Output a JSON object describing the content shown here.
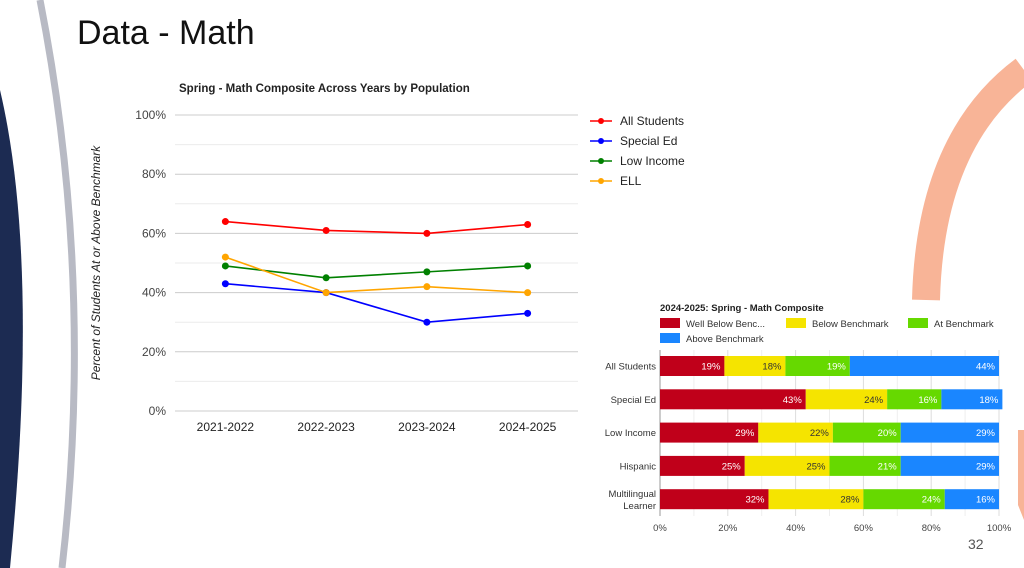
{
  "slide": {
    "title": "Data - Math",
    "page_number": "32"
  },
  "chart_data": [
    {
      "type": "line",
      "title": "Spring - Math Composite Across Years by Population",
      "ylabel": "Percent of Students At or Above Benchmark",
      "xlabel": "",
      "categories": [
        "2021-2022",
        "2022-2023",
        "2023-2024",
        "2024-2025"
      ],
      "ylim": [
        0,
        100
      ],
      "yticks": [
        "0%",
        "20%",
        "40%",
        "60%",
        "80%",
        "100%"
      ],
      "grid": true,
      "legend_position": "right",
      "series": [
        {
          "name": "All Students",
          "color": "#ff0000",
          "values": [
            64,
            61,
            60,
            63
          ]
        },
        {
          "name": "Special Ed",
          "color": "#0000ff",
          "values": [
            43,
            40,
            30,
            33
          ]
        },
        {
          "name": "Low Income",
          "color": "#008000",
          "values": [
            49,
            45,
            47,
            49
          ]
        },
        {
          "name": "ELL",
          "color": "#ffa500",
          "values": [
            52,
            40,
            42,
            40
          ]
        }
      ]
    },
    {
      "type": "bar",
      "orientation": "horizontal",
      "stacked": true,
      "title": "2024-2025: Spring - Math Composite",
      "categories": [
        "All Students",
        "Special Ed",
        "Low Income",
        "Hispanic",
        "Multilingual Learner"
      ],
      "xlim": [
        0,
        100
      ],
      "xticks": [
        "0%",
        "20%",
        "40%",
        "60%",
        "80%",
        "100%"
      ],
      "legend_position": "top",
      "series": [
        {
          "name": "Well Below Benc...",
          "color": "#c0001a",
          "label_color": "#ffffff",
          "values": [
            19,
            43,
            29,
            25,
            32
          ]
        },
        {
          "name": "Below Benchmark",
          "color": "#f5e400",
          "label_color": "#333333",
          "values": [
            18,
            24,
            22,
            25,
            28
          ]
        },
        {
          "name": "At Benchmark",
          "color": "#66d900",
          "label_color": "#ffffff",
          "values": [
            19,
            16,
            20,
            21,
            24
          ]
        },
        {
          "name": "Above Benchmark",
          "color": "#1a86ff",
          "label_color": "#ffffff",
          "values": [
            44,
            18,
            29,
            29,
            16
          ]
        }
      ]
    }
  ]
}
